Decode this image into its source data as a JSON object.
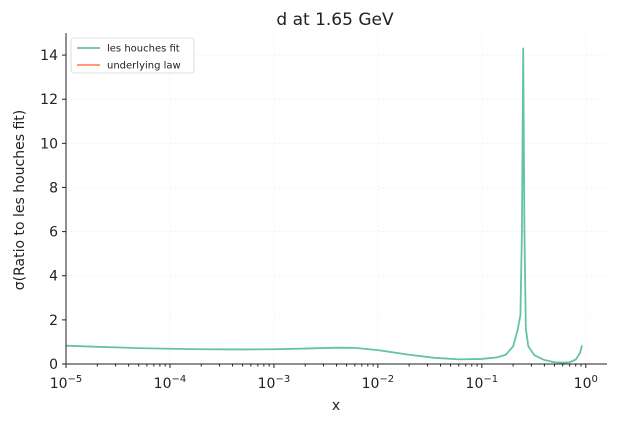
{
  "chart_data": {
    "type": "line",
    "title": "d at 1.65 GeV",
    "xlabel": "x",
    "ylabel": "σ(Ratio to les houches fit)",
    "xscale": "log",
    "xlim": [
      1e-05,
      1.6
    ],
    "ylim": [
      0,
      15
    ],
    "x_ticks": [
      {
        "value": 1e-05,
        "label": "10",
        "exp": "−5"
      },
      {
        "value": 0.0001,
        "label": "10",
        "exp": "−4"
      },
      {
        "value": 0.001,
        "label": "10",
        "exp": "−3"
      },
      {
        "value": 0.01,
        "label": "10",
        "exp": "−2"
      },
      {
        "value": 0.1,
        "label": "10",
        "exp": "−1"
      },
      {
        "value": 1,
        "label": "10",
        "exp": "0"
      }
    ],
    "y_ticks": [
      0,
      2,
      4,
      6,
      8,
      10,
      12,
      14
    ],
    "grid": true,
    "legend_position": "top-left",
    "series": [
      {
        "name": "les houches fit",
        "color": "#66c2a5",
        "points": [
          [
            1e-05,
            0.83
          ],
          [
            2e-05,
            0.78
          ],
          [
            5e-05,
            0.72
          ],
          [
            0.0001,
            0.69
          ],
          [
            0.0002,
            0.67
          ],
          [
            0.0005,
            0.66
          ],
          [
            0.001,
            0.67
          ],
          [
            0.002,
            0.7
          ],
          [
            0.004,
            0.74
          ],
          [
            0.006,
            0.73
          ],
          [
            0.01,
            0.63
          ],
          [
            0.02,
            0.42
          ],
          [
            0.035,
            0.28
          ],
          [
            0.06,
            0.21
          ],
          [
            0.1,
            0.23
          ],
          [
            0.14,
            0.3
          ],
          [
            0.17,
            0.42
          ],
          [
            0.2,
            0.8
          ],
          [
            0.22,
            1.5
          ],
          [
            0.235,
            2.2
          ],
          [
            0.243,
            6.0
          ],
          [
            0.25,
            14.3
          ],
          [
            0.257,
            6.0
          ],
          [
            0.265,
            1.6
          ],
          [
            0.28,
            0.8
          ],
          [
            0.32,
            0.4
          ],
          [
            0.4,
            0.18
          ],
          [
            0.5,
            0.08
          ],
          [
            0.6,
            0.06
          ],
          [
            0.7,
            0.08
          ],
          [
            0.8,
            0.2
          ],
          [
            0.88,
            0.5
          ],
          [
            0.92,
            0.85
          ]
        ]
      },
      {
        "name": "underlying law",
        "color": "#fc8d62",
        "points": []
      }
    ]
  }
}
